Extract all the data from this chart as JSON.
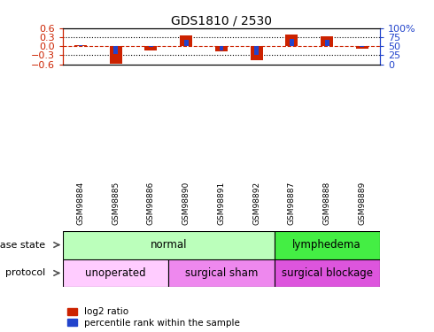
{
  "title": "GDS1810 / 2530",
  "samples": [
    "GSM98884",
    "GSM98885",
    "GSM98886",
    "GSM98890",
    "GSM98891",
    "GSM98892",
    "GSM98887",
    "GSM98888",
    "GSM98889"
  ],
  "log2_ratio": [
    0.05,
    -0.58,
    -0.15,
    0.35,
    -0.18,
    -0.45,
    0.38,
    0.33,
    -0.08
  ],
  "percentile_rank": [
    52,
    28,
    47,
    68,
    38,
    27,
    70,
    68,
    48
  ],
  "ylim_left": [
    -0.6,
    0.6
  ],
  "ylim_right": [
    0,
    100
  ],
  "yticks_left": [
    -0.6,
    -0.3,
    0.0,
    0.3,
    0.6
  ],
  "yticks_right": [
    0,
    25,
    50,
    75,
    100
  ],
  "bar_color_red": "#cc2200",
  "bar_color_blue": "#2244cc",
  "disease_state_labels": [
    {
      "label": "normal",
      "start": 0,
      "end": 6,
      "color": "#bbffbb"
    },
    {
      "label": "lymphedema",
      "start": 6,
      "end": 9,
      "color": "#44ee44"
    }
  ],
  "protocol_labels": [
    {
      "label": "unoperated",
      "start": 0,
      "end": 3,
      "color": "#ffccff"
    },
    {
      "label": "surgical sham",
      "start": 3,
      "end": 6,
      "color": "#ee88ee"
    },
    {
      "label": "surgical blockage",
      "start": 6,
      "end": 9,
      "color": "#dd55dd"
    }
  ],
  "xtick_bg_color": "#cccccc",
  "legend_red_label": "log2 ratio",
  "legend_blue_label": "percentile rank within the sample",
  "disease_state_row_label": "disease state",
  "protocol_row_label": "protocol",
  "background_color": "#ffffff",
  "plot_bg_color": "#ffffff",
  "tick_color_left": "#cc2200",
  "tick_color_right": "#2244cc"
}
